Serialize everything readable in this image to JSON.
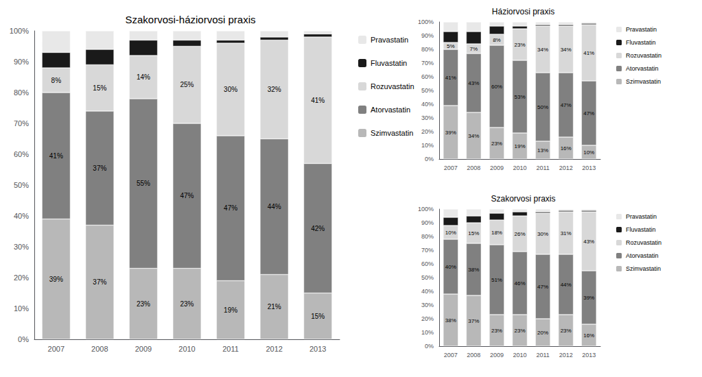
{
  "chart_data": [
    {
      "type": "bar",
      "title": "Szakorvosi-háziorvosi praxis",
      "stacked": true,
      "grid": false,
      "legend": "upper right",
      "categories": [
        "2007",
        "2008",
        "2009",
        "2010",
        "2011",
        "2012",
        "2013"
      ],
      "ylim": [
        0,
        100
      ],
      "yticks": [
        {
          "value": 0,
          "label": "0%"
        },
        {
          "value": 10,
          "label": "10%"
        },
        {
          "value": 20,
          "label": "20%"
        },
        {
          "value": 30,
          "label": "30%"
        },
        {
          "value": 40,
          "label": "40%"
        },
        {
          "value": 50,
          "label": "50%"
        },
        {
          "value": 60,
          "label": "60%"
        },
        {
          "value": 70,
          "label": "70%"
        },
        {
          "value": 80,
          "label": "80%"
        },
        {
          "value": 90,
          "label": "90%"
        },
        {
          "value": 100,
          "label": "100%"
        }
      ],
      "series": [
        {
          "name": "Szimvastatin",
          "color": "#b8b8b8",
          "values": [
            39,
            37,
            23,
            23,
            19,
            21,
            15
          ],
          "data_labels": true,
          "value_labels": [
            "39%",
            "37%",
            "23%",
            "23%",
            "19%",
            "21%",
            "15%"
          ]
        },
        {
          "name": "Atorvastatin",
          "color": "#808080",
          "values": [
            41,
            37,
            55,
            47,
            47,
            44,
            42
          ],
          "data_labels": true,
          "value_labels": [
            "41%",
            "37%",
            "55%",
            "47%",
            "47%",
            "44%",
            "42%"
          ]
        },
        {
          "name": "Rozuvastatin",
          "color": "#d8d8d8",
          "values": [
            8,
            15,
            14,
            25,
            30,
            32,
            41
          ],
          "data_labels": true,
          "value_labels": [
            "8%",
            "15%",
            "14%",
            "25%",
            "30%",
            "32%",
            "41%"
          ]
        },
        {
          "name": "Fluvastatin",
          "color": "#1a1a1a",
          "values": [
            5,
            5,
            5,
            2,
            1,
            1,
            1
          ]
        },
        {
          "name": "Pravastatin",
          "color": "#e8e8e8",
          "values": [
            7,
            6,
            3,
            3,
            3,
            2,
            1
          ]
        }
      ]
    },
    {
      "type": "bar",
      "title": "Háziorvosi praxis",
      "stacked": true,
      "grid": false,
      "legend": "upper right",
      "categories": [
        "2007",
        "2008",
        "2009",
        "2010",
        "2011",
        "2012",
        "2013"
      ],
      "ylim": [
        0,
        100
      ],
      "yticks": [
        {
          "value": 0,
          "label": "0%"
        },
        {
          "value": 10,
          "label": "10%"
        },
        {
          "value": 20,
          "label": "20%"
        },
        {
          "value": 30,
          "label": "30%"
        },
        {
          "value": 40,
          "label": "40%"
        },
        {
          "value": 50,
          "label": "50%"
        },
        {
          "value": 60,
          "label": "60%"
        },
        {
          "value": 70,
          "label": "70%"
        },
        {
          "value": 80,
          "label": "80%"
        },
        {
          "value": 90,
          "label": "90%"
        },
        {
          "value": 100,
          "label": "100%"
        }
      ],
      "series": [
        {
          "name": "Szimvastatin",
          "color": "#b8b8b8",
          "values": [
            39,
            34,
            23,
            19,
            13,
            16,
            10
          ],
          "data_labels": true,
          "value_labels": [
            "39%",
            "34%",
            "23%",
            "19%",
            "13%",
            "16%",
            "10%"
          ]
        },
        {
          "name": "Atorvastatin",
          "color": "#808080",
          "values": [
            41,
            43,
            60,
            53,
            50,
            47,
            47
          ],
          "data_labels": true,
          "value_labels": [
            "41%",
            "43%",
            "60%",
            "53%",
            "50%",
            "47%",
            "47%"
          ]
        },
        {
          "name": "Rozuvastatin",
          "color": "#d8d8d8",
          "values": [
            5,
            7,
            8,
            23,
            34,
            34,
            41
          ],
          "data_labels": true,
          "value_labels": [
            "5%",
            "7%",
            "8%",
            "23%",
            "34%",
            "34%",
            "41%"
          ]
        },
        {
          "name": "Fluvastatin",
          "color": "#1a1a1a",
          "values": [
            8,
            9,
            6,
            2,
            1,
            1,
            1
          ]
        },
        {
          "name": "Pravastatin",
          "color": "#e8e8e8",
          "values": [
            7,
            7,
            3,
            3,
            2,
            2,
            1
          ]
        }
      ]
    },
    {
      "type": "bar",
      "title": "Szakorvosi praxis",
      "stacked": true,
      "grid": false,
      "legend": "upper right",
      "categories": [
        "2007",
        "2008",
        "2009",
        "2010",
        "2011",
        "2012",
        "2013"
      ],
      "ylim": [
        0,
        100
      ],
      "yticks": [
        {
          "value": 0,
          "label": "0%"
        },
        {
          "value": 10,
          "label": "10%"
        },
        {
          "value": 20,
          "label": "20%"
        },
        {
          "value": 30,
          "label": "30%"
        },
        {
          "value": 40,
          "label": "40%"
        },
        {
          "value": 50,
          "label": "50%"
        },
        {
          "value": 60,
          "label": "60%"
        },
        {
          "value": 70,
          "label": "70%"
        },
        {
          "value": 80,
          "label": "80%"
        },
        {
          "value": 90,
          "label": "90%"
        },
        {
          "value": 100,
          "label": "100%"
        }
      ],
      "series": [
        {
          "name": "Szimvastatin",
          "color": "#b8b8b8",
          "values": [
            38,
            37,
            23,
            23,
            20,
            23,
            16
          ],
          "data_labels": true,
          "value_labels": [
            "38%",
            "37%",
            "23%",
            "23%",
            "20%",
            "23%",
            "16%"
          ]
        },
        {
          "name": "Atorvastatin",
          "color": "#808080",
          "values": [
            40,
            38,
            51,
            46,
            47,
            44,
            39
          ],
          "data_labels": true,
          "value_labels": [
            "40%",
            "38%",
            "51%",
            "46%",
            "47%",
            "44%",
            "39%"
          ]
        },
        {
          "name": "Rozuvastatin",
          "color": "#d8d8d8",
          "values": [
            10,
            15,
            18,
            26,
            30,
            31,
            43
          ],
          "data_labels": true,
          "value_labels": [
            "10%",
            "15%",
            "18%",
            "26%",
            "30%",
            "31%",
            "43%"
          ]
        },
        {
          "name": "Fluvastatin",
          "color": "#1a1a1a",
          "values": [
            6,
            5,
            5,
            3,
            1,
            1,
            1
          ]
        },
        {
          "name": "Pravastatin",
          "color": "#e8e8e8",
          "values": [
            6,
            5,
            3,
            2,
            2,
            1,
            1
          ]
        }
      ]
    }
  ]
}
